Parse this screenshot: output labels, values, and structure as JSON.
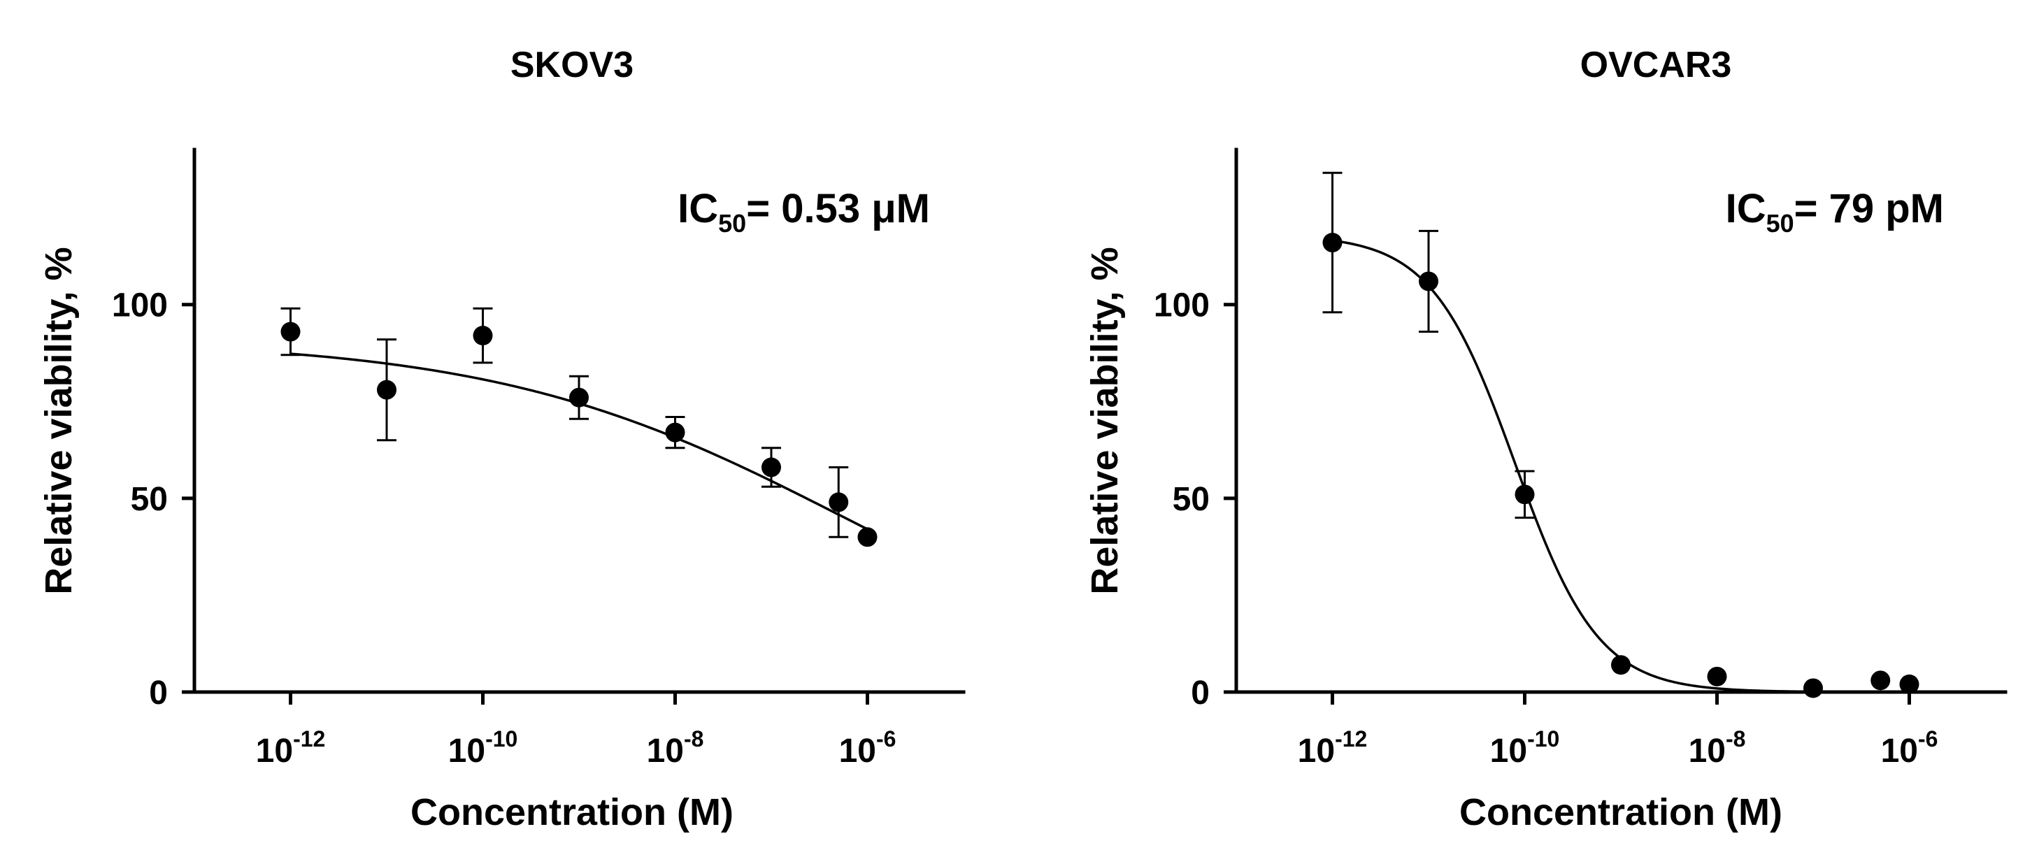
{
  "colors": {
    "ink": "#000000",
    "background": "#ffffff"
  },
  "chart_data": [
    {
      "type": "scatter",
      "title": "SKOV3",
      "xlabel": "Concentration (M)",
      "ylabel": "Relative viability, %",
      "annotation": {
        "prefix": "IC",
        "subscript": "50",
        "suffix": "= 0.53 μM"
      },
      "xscale": "log",
      "xlim": [
        -13,
        -5
      ],
      "ylim": [
        0,
        140
      ],
      "xticks": [
        {
          "exp": -12,
          "base": "10",
          "sup": "-12"
        },
        {
          "exp": -10,
          "base": "10",
          "sup": "-10"
        },
        {
          "exp": -8,
          "base": "10",
          "sup": "-8"
        },
        {
          "exp": -6,
          "base": "10",
          "sup": "-6"
        }
      ],
      "yticks": [
        0,
        50,
        100
      ],
      "points": [
        {
          "log_x": -12,
          "y": 93,
          "err": 6
        },
        {
          "log_x": -11,
          "y": 78,
          "err": 13
        },
        {
          "log_x": -10,
          "y": 92,
          "err": 7
        },
        {
          "log_x": -9,
          "y": 76,
          "err": 5.5
        },
        {
          "log_x": -8,
          "y": 67,
          "err": 4
        },
        {
          "log_x": -7,
          "y": 58,
          "err": 5
        },
        {
          "log_x": -6.3,
          "y": 49,
          "err": 9
        },
        {
          "log_x": -6,
          "y": 40,
          "err": 0
        }
      ],
      "fit": {
        "model": "4PL",
        "top": 91,
        "bottom": 0,
        "log_ic50": -6.276,
        "hill": 0.24
      }
    },
    {
      "type": "scatter",
      "title": "OVCAR3",
      "xlabel": "Concentration (M)",
      "ylabel": "Relative viability, %",
      "annotation": {
        "prefix": "IC",
        "subscript": "50",
        "suffix": "= 79 pM"
      },
      "xscale": "log",
      "xlim": [
        -13,
        -5
      ],
      "ylim": [
        0,
        140
      ],
      "xticks": [
        {
          "exp": -12,
          "base": "10",
          "sup": "-12"
        },
        {
          "exp": -10,
          "base": "10",
          "sup": "-10"
        },
        {
          "exp": -8,
          "base": "10",
          "sup": "-8"
        },
        {
          "exp": -6,
          "base": "10",
          "sup": "-6"
        }
      ],
      "yticks": [
        0,
        50,
        100
      ],
      "points": [
        {
          "log_x": -12,
          "y": 116,
          "err": 18
        },
        {
          "log_x": -11,
          "y": 106,
          "err": 13
        },
        {
          "log_x": -10,
          "y": 51,
          "err": 6
        },
        {
          "log_x": -9,
          "y": 7,
          "err": 0
        },
        {
          "log_x": -8,
          "y": 4,
          "err": 0
        },
        {
          "log_x": -7,
          "y": 1,
          "err": 0
        },
        {
          "log_x": -6.3,
          "y": 3,
          "err": 0
        },
        {
          "log_x": -6,
          "y": 2,
          "err": 0
        }
      ],
      "fit": {
        "model": "4PL",
        "top": 118,
        "bottom": 0,
        "log_ic50": -10.1,
        "hill": 1.0
      }
    }
  ]
}
